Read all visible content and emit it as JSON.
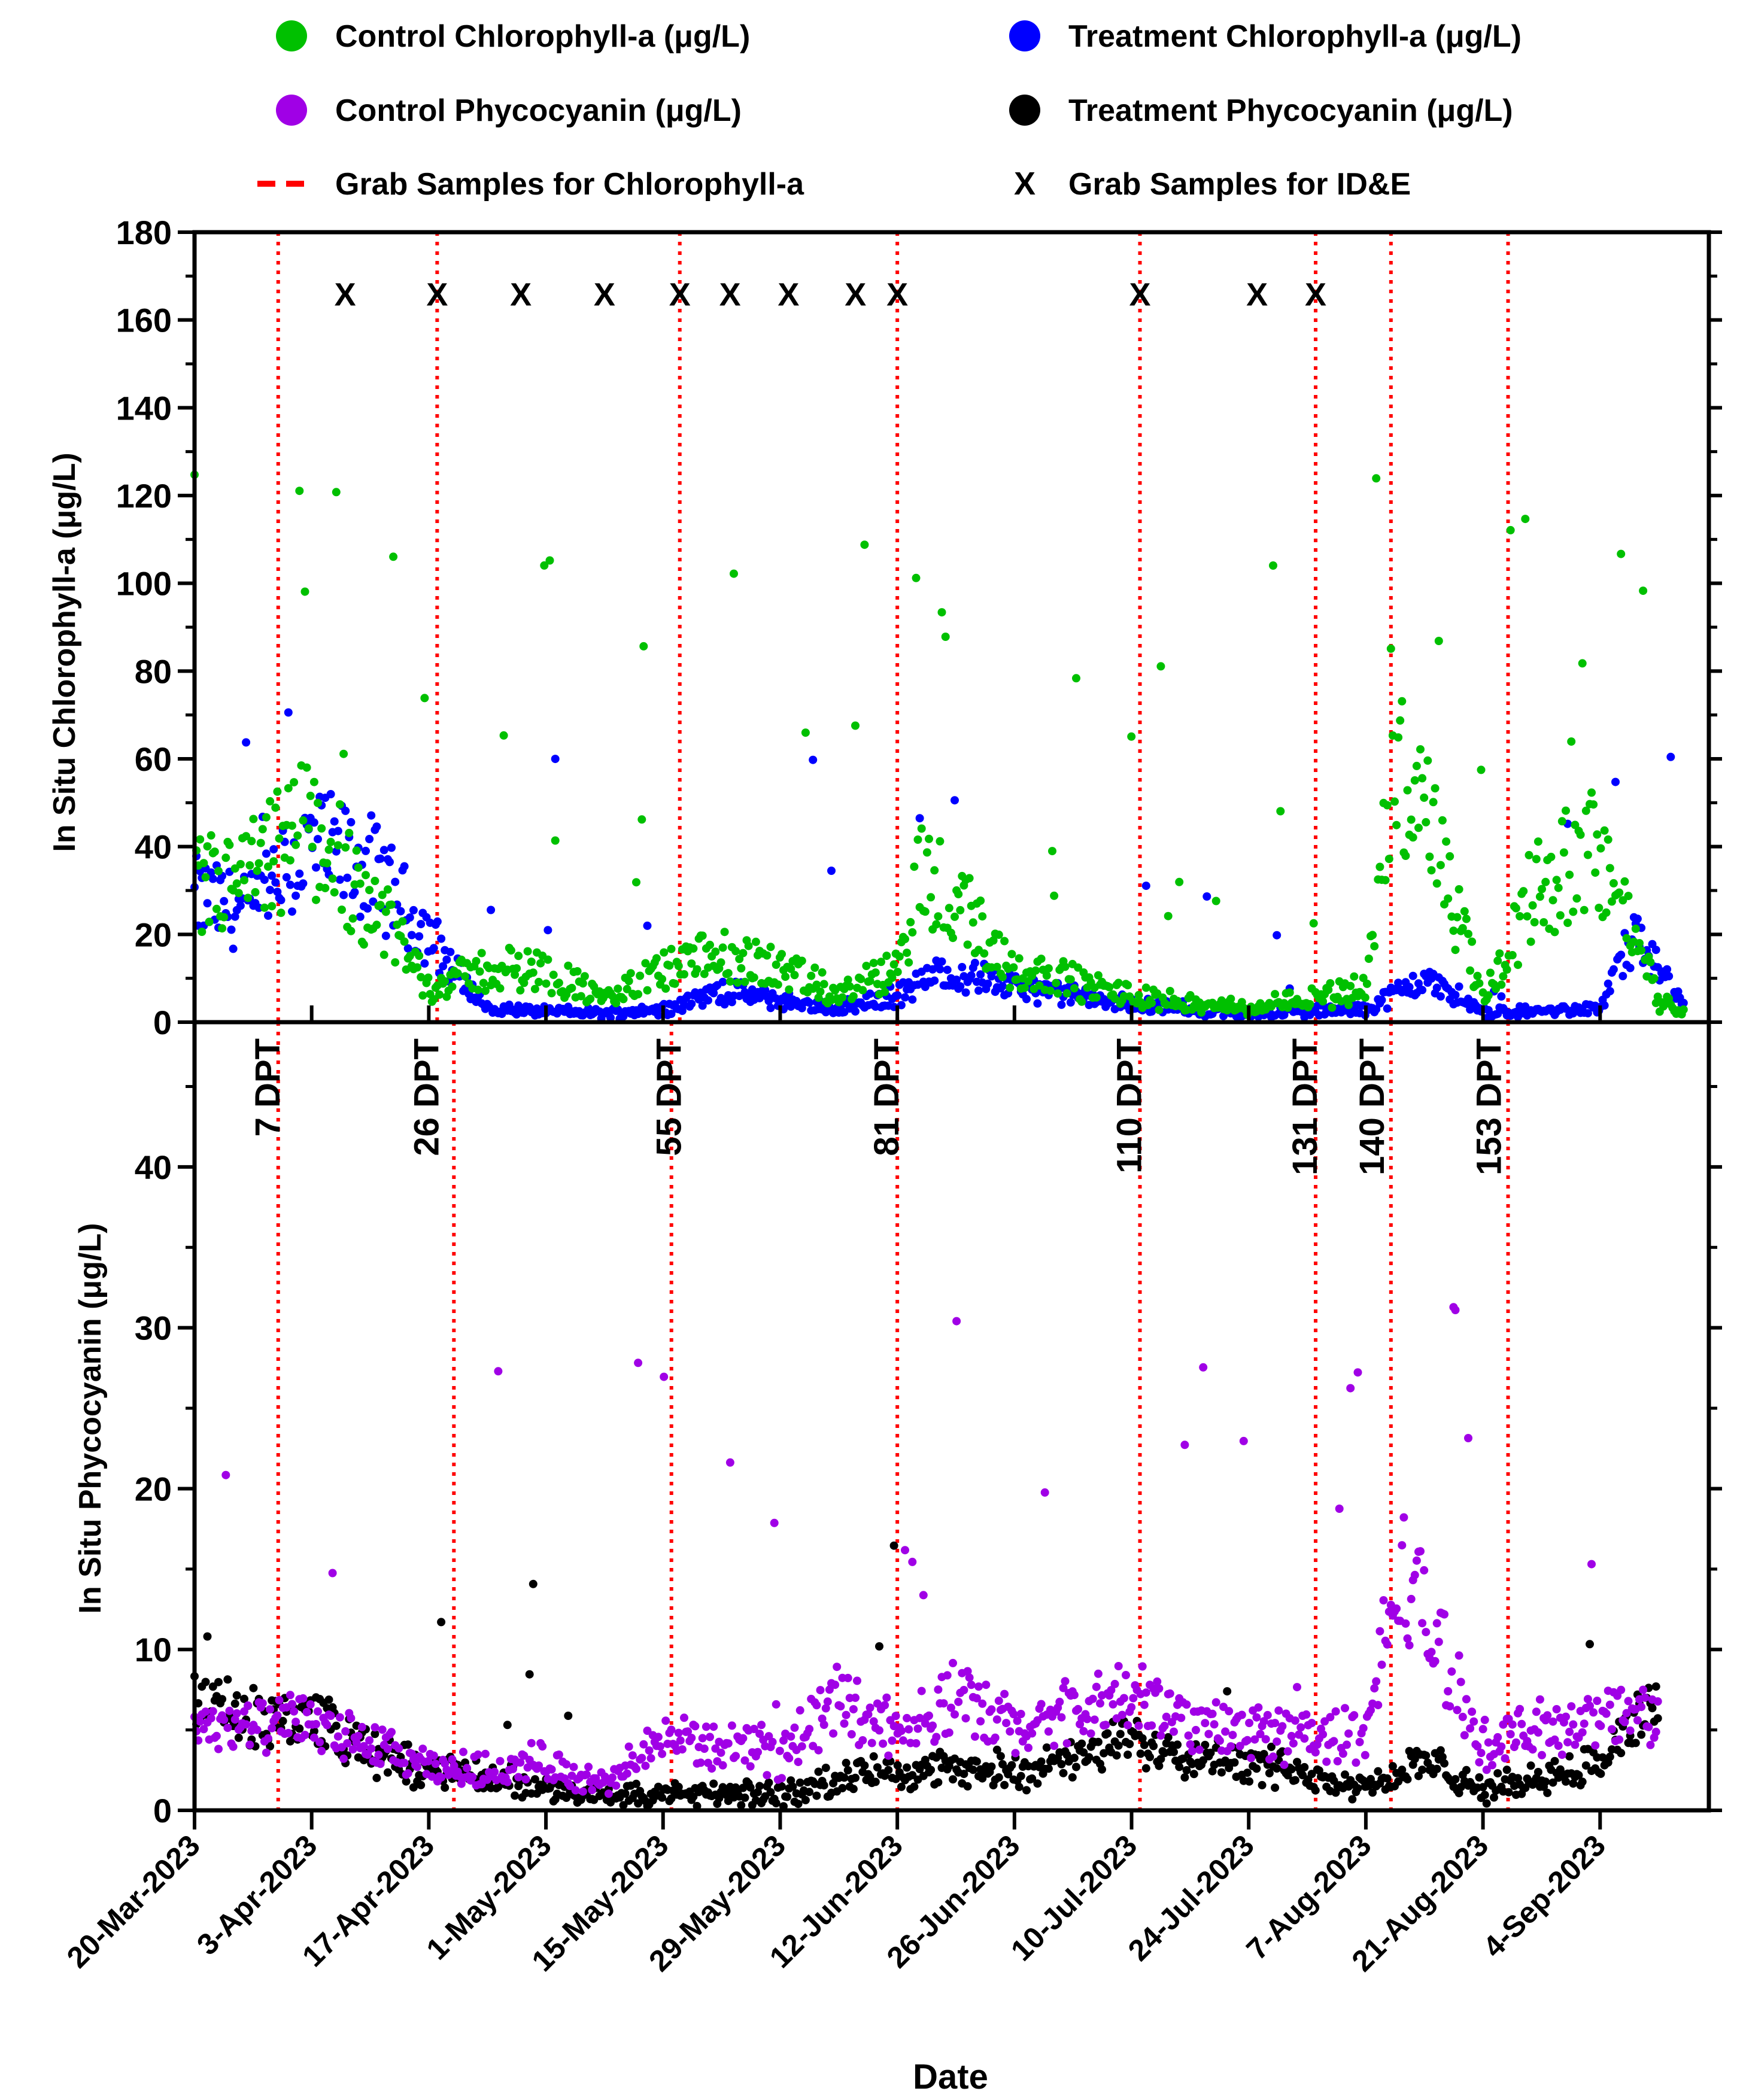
{
  "chart_data": {
    "type": "scatter",
    "xlabel": "Date",
    "x_tick_labels": [
      "20-Mar-2023",
      "3-Apr-2023",
      "17-Apr-2023",
      "1-May-2023",
      "15-May-2023",
      "29-May-2023",
      "12-Jun-2023",
      "26-Jun-2023",
      "10-Jul-2023",
      "24-Jul-2023",
      "7-Aug-2023",
      "21-Aug-2023",
      "4-Sep-2023"
    ],
    "x_tick_days": [
      0,
      14,
      28,
      42,
      56,
      70,
      84,
      98,
      112,
      126,
      140,
      154,
      168
    ],
    "xlim_days": [
      0,
      181
    ],
    "legend": {
      "control_chl": "Control Chlorophyll-a (μg/L)",
      "treatment_chl": "Treatment Chlorophyll-a (μg/L)",
      "control_pc": "Control Phycocyanin (μg/L)",
      "treatment_pc": "Treatment Phycocyanin (μg/L)",
      "grab_chl": "Grab Samples for Chlorophyll-a",
      "grab_ide": "Grab Samples for ID&E"
    },
    "colors": {
      "control_chl": "#00c000",
      "treatment_chl": "#0000ff",
      "control_pc": "#a000e6",
      "treatment_pc": "#000000",
      "grab": "#ff0000"
    },
    "top_panel": {
      "ylabel": "In Situ Chlorophyll-a (μg/L)",
      "ylim": [
        0,
        180
      ],
      "yticks": [
        0,
        20,
        40,
        60,
        80,
        100,
        120,
        140,
        160,
        180
      ],
      "grab_chl_days": [
        10,
        29,
        58,
        84,
        113,
        134,
        143,
        157
      ],
      "ide_marker_label": "X",
      "ide_days": [
        18,
        29,
        39,
        49,
        58,
        64,
        71,
        79,
        84,
        113,
        127,
        134
      ]
    },
    "bottom_panel": {
      "ylabel": "In Situ Phycocyanin (μg/L)",
      "ylim": [
        0,
        49
      ],
      "yticks": [
        0,
        10,
        20,
        30,
        40
      ],
      "grab_days": [
        10,
        31,
        57,
        84,
        113,
        134,
        143,
        157
      ],
      "dpt_labels": [
        {
          "text": "7 DPT",
          "day": 10
        },
        {
          "text": "26 DPT",
          "day": 29
        },
        {
          "text": "55 DPT",
          "day": 58
        },
        {
          "text": "81 DPT",
          "day": 84
        },
        {
          "text": "110 DPT",
          "day": 113
        },
        {
          "text": "131 DPT",
          "day": 134
        },
        {
          "text": "140 DPT",
          "day": 142
        },
        {
          "text": "153 DPT",
          "day": 156
        }
      ]
    },
    "series_envelopes": {
      "control_chl": [
        [
          0,
          30
        ],
        [
          7,
          33
        ],
        [
          14,
          45
        ],
        [
          21,
          28
        ],
        [
          28,
          8
        ],
        [
          35,
          12
        ],
        [
          42,
          12
        ],
        [
          49,
          5
        ],
        [
          56,
          12
        ],
        [
          63,
          15
        ],
        [
          70,
          12
        ],
        [
          77,
          6
        ],
        [
          84,
          12
        ],
        [
          87,
          35
        ],
        [
          98,
          12
        ],
        [
          112,
          6
        ],
        [
          126,
          3
        ],
        [
          140,
          8
        ],
        [
          144,
          60
        ],
        [
          150,
          30
        ],
        [
          154,
          5
        ],
        [
          160,
          30
        ],
        [
          168,
          40
        ],
        [
          175,
          5
        ],
        [
          178,
          2
        ]
      ],
      "treatment_chl": [
        [
          0,
          28
        ],
        [
          7,
          25
        ],
        [
          14,
          40
        ],
        [
          21,
          35
        ],
        [
          28,
          20
        ],
        [
          31,
          12
        ],
        [
          35,
          3
        ],
        [
          49,
          2
        ],
        [
          56,
          3
        ],
        [
          63,
          7
        ],
        [
          70,
          5
        ],
        [
          77,
          3
        ],
        [
          84,
          6
        ],
        [
          90,
          12
        ],
        [
          98,
          8
        ],
        [
          112,
          4
        ],
        [
          126,
          2
        ],
        [
          140,
          3
        ],
        [
          147,
          10
        ],
        [
          154,
          2
        ],
        [
          168,
          3
        ],
        [
          172,
          20
        ],
        [
          178,
          3
        ]
      ],
      "control_pc": [
        [
          0,
          5.5
        ],
        [
          7,
          5
        ],
        [
          14,
          5.5
        ],
        [
          21,
          4
        ],
        [
          28,
          2.5
        ],
        [
          35,
          2.5
        ],
        [
          42,
          3
        ],
        [
          49,
          1.5
        ],
        [
          56,
          4.5
        ],
        [
          63,
          4
        ],
        [
          70,
          3.5
        ],
        [
          77,
          7
        ],
        [
          84,
          5
        ],
        [
          91,
          7
        ],
        [
          98,
          5
        ],
        [
          105,
          6
        ],
        [
          112,
          7
        ],
        [
          119,
          5.5
        ],
        [
          126,
          5
        ],
        [
          140,
          4.5
        ],
        [
          144,
          15
        ],
        [
          150,
          9
        ],
        [
          154,
          4
        ],
        [
          168,
          6
        ],
        [
          175,
          6
        ]
      ],
      "treatment_pc": [
        [
          0,
          7
        ],
        [
          7,
          5.5
        ],
        [
          14,
          6
        ],
        [
          21,
          3.5
        ],
        [
          28,
          2.5
        ],
        [
          35,
          2
        ],
        [
          42,
          1.5
        ],
        [
          49,
          0.8
        ],
        [
          56,
          1
        ],
        [
          63,
          1
        ],
        [
          70,
          1
        ],
        [
          77,
          2
        ],
        [
          84,
          2.5
        ],
        [
          91,
          2.5
        ],
        [
          98,
          2.5
        ],
        [
          105,
          3
        ],
        [
          112,
          4.5
        ],
        [
          119,
          3.5
        ],
        [
          126,
          3
        ],
        [
          140,
          1.5
        ],
        [
          147,
          3
        ],
        [
          154,
          1.2
        ],
        [
          160,
          2
        ],
        [
          168,
          3
        ],
        [
          175,
          7
        ]
      ]
    }
  }
}
